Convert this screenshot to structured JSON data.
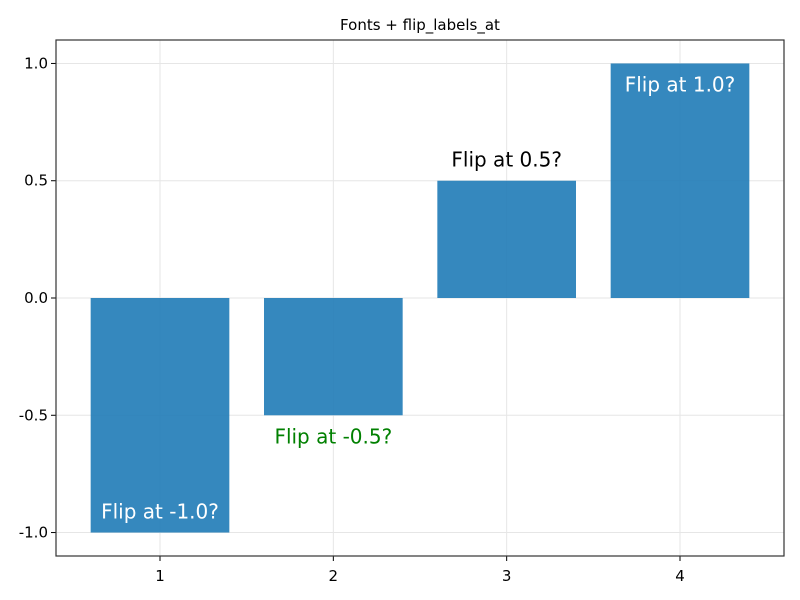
{
  "chart_data": {
    "type": "bar",
    "title": "Fonts + flip_labels_at",
    "xlabel": "",
    "ylabel": "",
    "categories": [
      "1",
      "2",
      "3",
      "4"
    ],
    "x": [
      1,
      2,
      3,
      4
    ],
    "values": [
      -1.0,
      -0.5,
      0.5,
      1.0
    ],
    "ylim": [
      -1.1,
      1.1
    ],
    "xlim": [
      0.4,
      4.6
    ],
    "yticks": [
      -1.0,
      -0.5,
      0.0,
      0.5,
      1.0
    ],
    "ytick_labels": [
      "-1.0",
      "-0.5",
      "0.0",
      "0.5",
      "1.0"
    ],
    "xticks": [
      1,
      2,
      3,
      4
    ],
    "xtick_labels": [
      "1",
      "2",
      "3",
      "4"
    ],
    "grid": true,
    "bar_labels": [
      {
        "text": "Flip at -1.0?",
        "color": "#ffffff",
        "placement": "inside"
      },
      {
        "text": "Flip at -0.5?",
        "color": "#008000",
        "placement": "outside"
      },
      {
        "text": "Flip at 0.5?",
        "color": "#000000",
        "placement": "outside"
      },
      {
        "text": "Flip at 1.0?",
        "color": "#ffffff",
        "placement": "inside"
      }
    ],
    "colors": {
      "bar": "#1f7bb7",
      "grid": "#e6e6e6",
      "frame": "#000000"
    }
  }
}
